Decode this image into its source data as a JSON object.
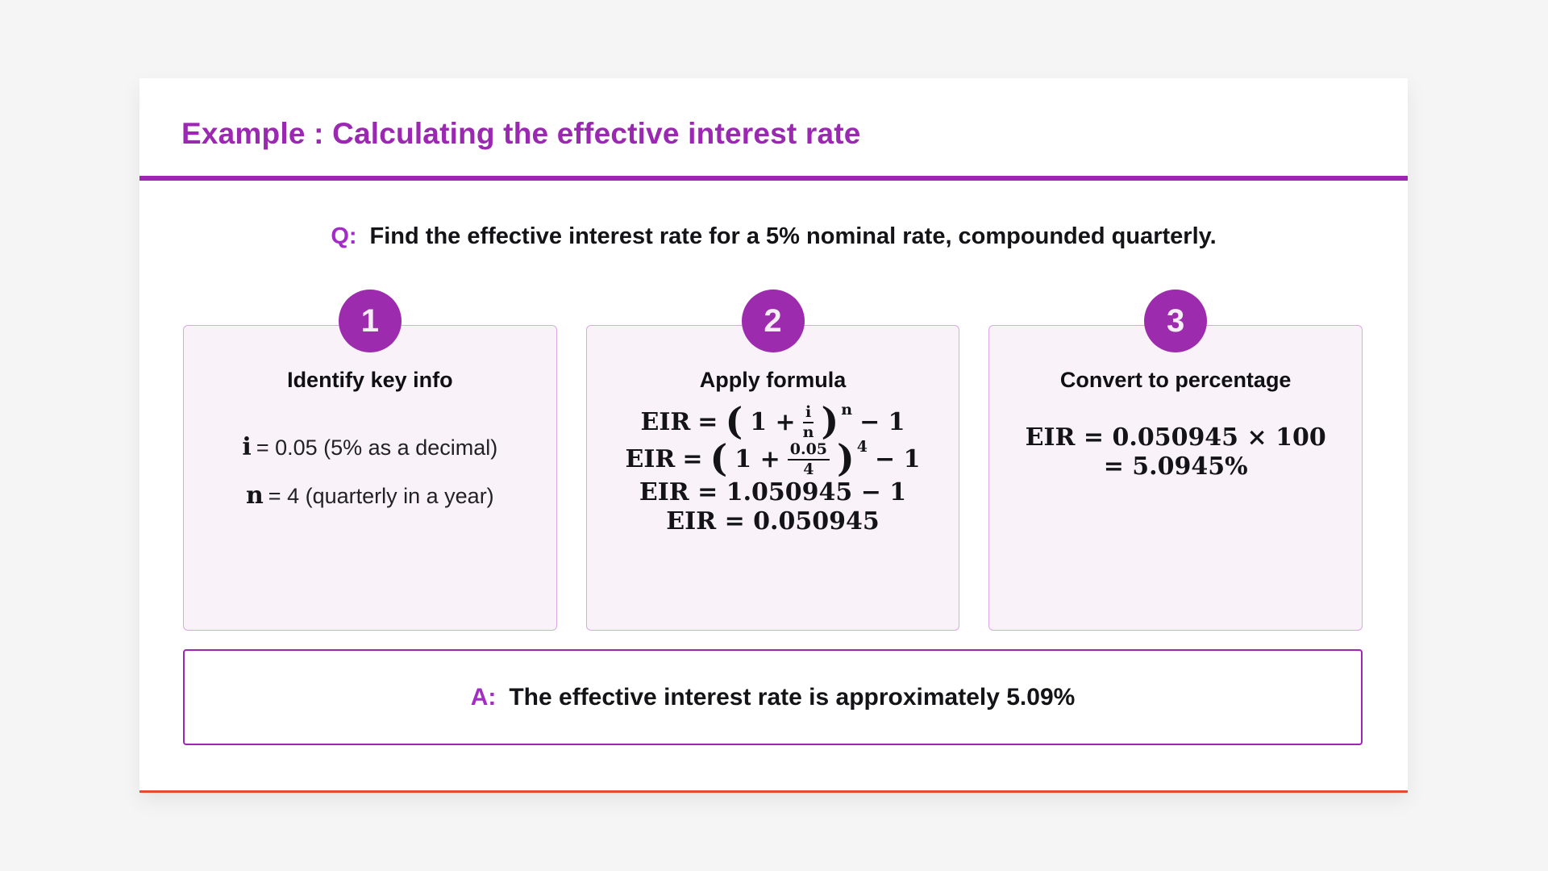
{
  "colors": {
    "accent_purple": "#9c27b0",
    "title_purple": "#9b28b1",
    "qa_purple": "#a42cc6",
    "badge_purple": "#9d2bae",
    "card_bg": "#f9f2f9",
    "card_border": "#daa9e4",
    "bottom_line_red": "#e64a36"
  },
  "header": {
    "title": "Example : Calculating the effective interest rate"
  },
  "question": {
    "prefix": "Q:",
    "text": "Find the effective interest rate for a 5% nominal rate, compounded quarterly."
  },
  "steps": [
    {
      "number": "1",
      "title": "Identify key info",
      "lines": [
        {
          "var": "i",
          "rest": "= 0.05 (5% as a decimal)"
        },
        {
          "var": "n",
          "rest": "= 4 (quarterly in a year)"
        }
      ]
    },
    {
      "number": "2",
      "title": "Apply formula",
      "formula_general": {
        "lhs": "EIR",
        "eq": "=",
        "open": "(",
        "lead": "1 +",
        "num": "i",
        "den": "n",
        "close": ")",
        "exp": "n",
        "tail": "− 1"
      },
      "formula_substituted": {
        "lhs": "EIR",
        "eq": "=",
        "open": "(",
        "lead": "1 +",
        "num": "0.05",
        "den": "4",
        "close": ")",
        "exp": "4",
        "tail": "− 1"
      },
      "formula_evaluated": "EIR = 1.050945 − 1",
      "formula_result": "EIR = 0.050945"
    },
    {
      "number": "3",
      "title": "Convert to percentage",
      "line1": "EIR = 0.050945 × 100",
      "line2": "= 5.0945%"
    }
  ],
  "answer": {
    "prefix": "A:",
    "text": "The effective interest rate is approximately 5.09%"
  }
}
